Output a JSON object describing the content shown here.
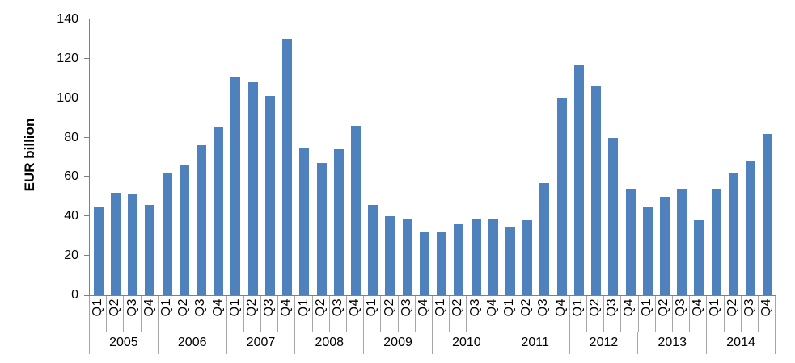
{
  "chart_data": {
    "type": "bar",
    "title": "",
    "ylabel": "EUR billion",
    "xlabel": "",
    "ylim": [
      0,
      140
    ],
    "yticks": [
      0,
      20,
      40,
      60,
      80,
      100,
      120,
      140
    ],
    "quarter_labels": [
      "Q1",
      "Q2",
      "Q3",
      "Q4"
    ],
    "bar_color": "#4F81BD",
    "axis_color": "#808080",
    "divider_color": "#A6A6A6",
    "grid": false,
    "legend": false,
    "years": [
      {
        "year": "2005",
        "values": [
          45,
          52,
          51,
          46
        ]
      },
      {
        "year": "2006",
        "values": [
          62,
          66,
          76,
          85
        ]
      },
      {
        "year": "2007",
        "values": [
          111,
          108,
          101,
          130
        ]
      },
      {
        "year": "2008",
        "values": [
          75,
          67,
          74,
          86
        ]
      },
      {
        "year": "2009",
        "values": [
          46,
          40,
          39,
          32
        ]
      },
      {
        "year": "2010",
        "values": [
          32,
          36,
          39,
          39
        ]
      },
      {
        "year": "2011",
        "values": [
          35,
          38,
          57,
          100
        ]
      },
      {
        "year": "2012",
        "values": [
          117,
          106,
          80,
          54
        ]
      },
      {
        "year": "2013",
        "values": [
          45,
          50,
          54,
          38
        ]
      },
      {
        "year": "2014",
        "values": [
          54,
          62,
          68,
          82
        ]
      }
    ]
  }
}
